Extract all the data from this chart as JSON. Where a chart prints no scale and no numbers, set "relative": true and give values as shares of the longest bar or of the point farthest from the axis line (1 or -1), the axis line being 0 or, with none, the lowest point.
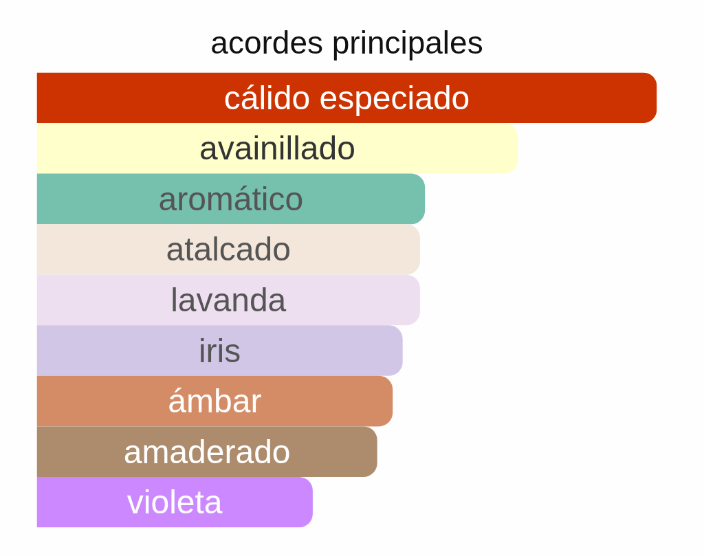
{
  "chart_data": {
    "type": "bar",
    "orientation": "horizontal",
    "relative": true,
    "title": "acordes principales",
    "categories": [
      "cálido especiado",
      "avainillado",
      "aromático",
      "atalcado",
      "lavanda",
      "iris",
      "ámbar",
      "amaderado",
      "violeta"
    ],
    "values": [
      1,
      0.776,
      0.626,
      0.618,
      0.618,
      0.59,
      0.574,
      0.549,
      0.445
    ],
    "colors": [
      "#cc3300",
      "#ffffcc",
      "#76c0ae",
      "#f3e6da",
      "#eedff0",
      "#d2c6e6",
      "#d48c66",
      "#ad8c6e",
      "#cc88ff"
    ]
  }
}
